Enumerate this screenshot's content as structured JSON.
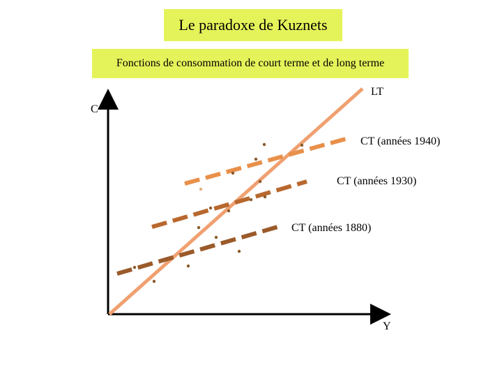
{
  "title": "Le paradoxe de Kuznets",
  "subtitle": "Fonctions de consommation de court terme et de long terme",
  "axes": {
    "y_label": "C",
    "x_label": "Y"
  },
  "lines": {
    "long_term": {
      "label": "LT",
      "color": "#f0a070"
    },
    "short_term": [
      {
        "label": "CT (années 1940)",
        "color": "#e8904a"
      },
      {
        "label": "CT (années 1930)",
        "color": "#b8682e"
      },
      {
        "label": "CT (années 1880)",
        "color": "#9a5a2a"
      }
    ]
  },
  "colors": {
    "axis": "#000000",
    "dots": "#8a5a2a"
  }
}
